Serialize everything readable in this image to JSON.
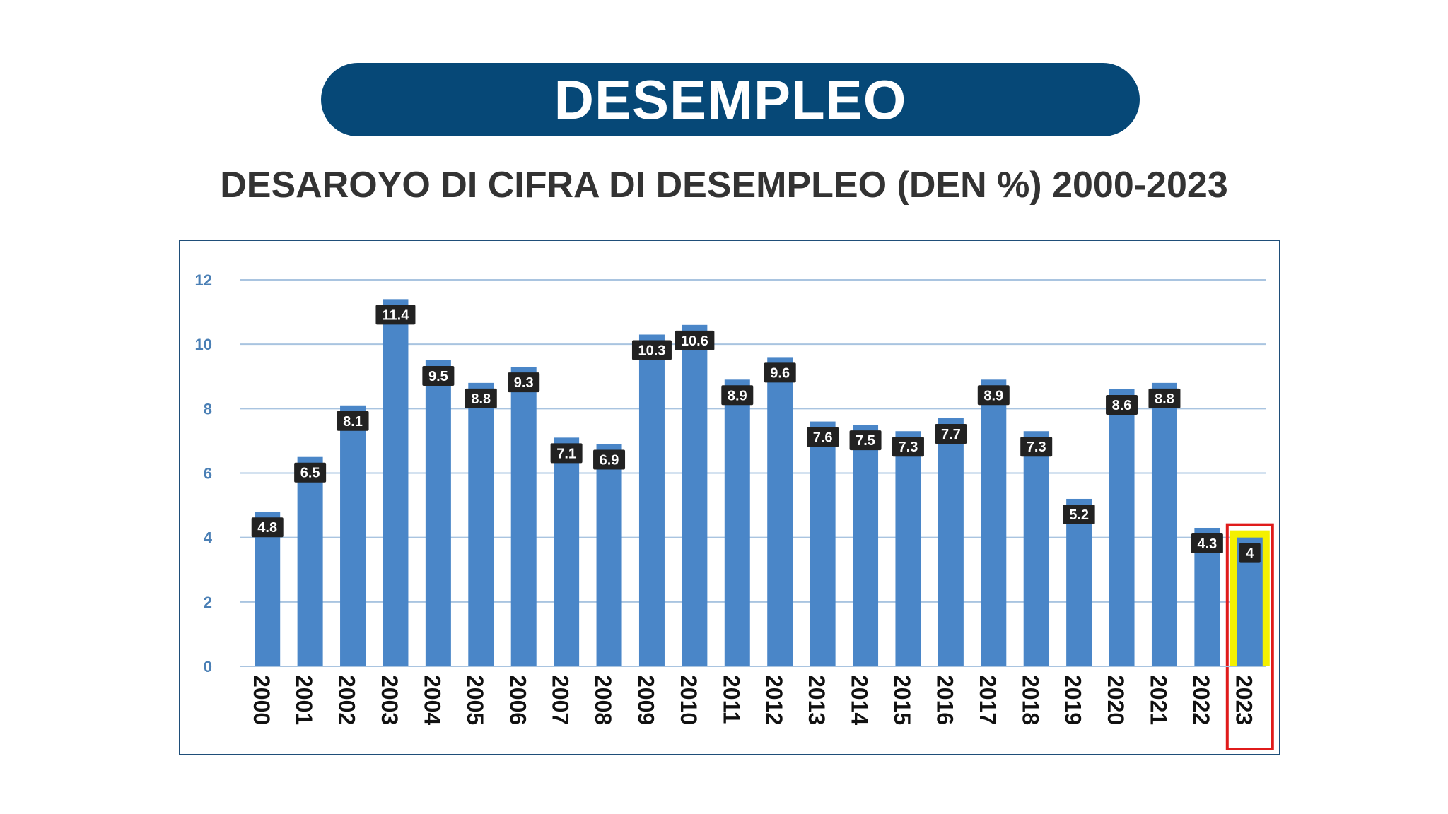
{
  "header": {
    "title": "DESEMPLEO"
  },
  "subtitle": "DESAROYO DI CIFRA DI DESEMPLEO (DEN %) 2000-2023",
  "colors": {
    "bar": "#4a86c8",
    "grid": "#a9c4e0",
    "label_bg": "#222222",
    "highlight_fill": "#f4f000",
    "highlight_border": "#e01b1b",
    "pill": "#064877"
  },
  "chart_data": {
    "type": "bar",
    "title": "DESAROYO DI CIFRA DI DESEMPLEO (DEN %) 2000-2023",
    "xlabel": "",
    "ylabel": "",
    "ylim": [
      0,
      12
    ],
    "yticks": [
      "0",
      "2",
      "4",
      "6",
      "8",
      "10",
      "12"
    ],
    "grid": true,
    "categories": [
      "2000",
      "2001",
      "2002",
      "2003",
      "2004",
      "2005",
      "2006",
      "2007",
      "2008",
      "2009",
      "2010",
      "2011",
      "2012",
      "2013",
      "2014",
      "2015",
      "2016",
      "2017",
      "2018",
      "2019",
      "2020",
      "2021",
      "2022",
      "2023"
    ],
    "values": [
      4.8,
      6.5,
      8.1,
      11.4,
      9.5,
      8.8,
      9.3,
      7.1,
      6.9,
      10.3,
      10.6,
      8.9,
      9.6,
      7.6,
      7.5,
      7.3,
      7.7,
      8.9,
      7.3,
      5.2,
      8.6,
      8.8,
      4.3,
      4
    ],
    "data_labels": [
      "4.8",
      "6.5",
      "8.1",
      "11.4",
      "9.5",
      "8.8",
      "9.3",
      "7.1",
      "6.9",
      "10.3",
      "10.6",
      "8.9",
      "9.6",
      "7.6",
      "7.5",
      "7.3",
      "7.7",
      "8.9",
      "7.3",
      "5.2",
      "8.6",
      "8.8",
      "4.3",
      "4"
    ],
    "highlight_category": "2023"
  }
}
